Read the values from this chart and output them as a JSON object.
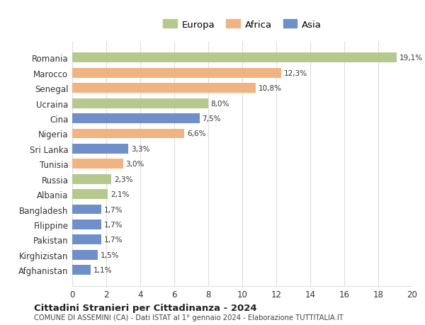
{
  "categories": [
    "Romania",
    "Marocco",
    "Senegal",
    "Ucraina",
    "Cina",
    "Nigeria",
    "Sri Lanka",
    "Tunisia",
    "Russia",
    "Albania",
    "Bangladesh",
    "Filippine",
    "Pakistan",
    "Kirghizistan",
    "Afghanistan"
  ],
  "values": [
    19.1,
    12.3,
    10.8,
    8.0,
    7.5,
    6.6,
    3.3,
    3.0,
    2.3,
    2.1,
    1.7,
    1.7,
    1.7,
    1.5,
    1.1
  ],
  "labels": [
    "19,1%",
    "12,3%",
    "10,8%",
    "8,0%",
    "7,5%",
    "6,6%",
    "3,3%",
    "3,0%",
    "2,3%",
    "2,1%",
    "1,7%",
    "1,7%",
    "1,7%",
    "1,5%",
    "1,1%"
  ],
  "continents": [
    "Europa",
    "Africa",
    "Africa",
    "Europa",
    "Asia",
    "Africa",
    "Asia",
    "Africa",
    "Europa",
    "Europa",
    "Asia",
    "Asia",
    "Asia",
    "Asia",
    "Asia"
  ],
  "colors": {
    "Europa": "#b5c98e",
    "Africa": "#f0b482",
    "Asia": "#6e8fc9"
  },
  "legend_labels": [
    "Europa",
    "Africa",
    "Asia"
  ],
  "xlim": [
    0,
    20
  ],
  "xticks": [
    0,
    2,
    4,
    6,
    8,
    10,
    12,
    14,
    16,
    18,
    20
  ],
  "title": "Cittadini Stranieri per Cittadinanza - 2024",
  "subtitle": "COMUNE DI ASSEMINI (CA) - Dati ISTAT al 1° gennaio 2024 - Elaborazione TUTTITALIA.IT",
  "background_color": "#ffffff",
  "grid_color": "#dddddd"
}
